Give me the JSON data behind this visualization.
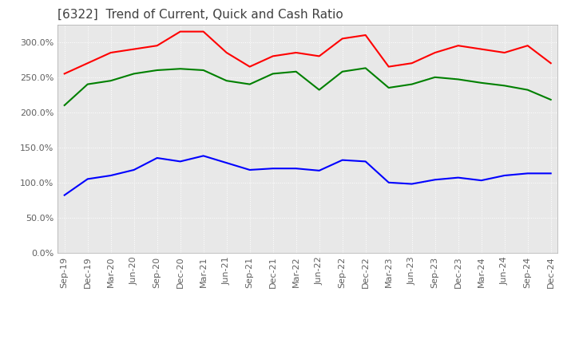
{
  "title": "[6322]  Trend of Current, Quick and Cash Ratio",
  "x_labels": [
    "Sep-19",
    "Dec-19",
    "Mar-20",
    "Jun-20",
    "Sep-20",
    "Dec-20",
    "Mar-21",
    "Jun-21",
    "Sep-21",
    "Dec-21",
    "Mar-22",
    "Jun-22",
    "Sep-22",
    "Dec-22",
    "Mar-23",
    "Jun-23",
    "Sep-23",
    "Dec-23",
    "Mar-24",
    "Jun-24",
    "Sep-24",
    "Dec-24"
  ],
  "current_ratio": [
    255,
    270,
    285,
    290,
    295,
    315,
    315,
    285,
    265,
    280,
    285,
    280,
    305,
    310,
    265,
    270,
    285,
    295,
    290,
    285,
    295,
    270
  ],
  "quick_ratio": [
    210,
    240,
    245,
    255,
    260,
    262,
    260,
    245,
    240,
    255,
    258,
    232,
    258,
    263,
    235,
    240,
    250,
    247,
    242,
    238,
    232,
    218
  ],
  "cash_ratio": [
    82,
    105,
    110,
    118,
    135,
    130,
    138,
    128,
    118,
    120,
    120,
    117,
    132,
    130,
    100,
    98,
    104,
    107,
    103,
    110,
    113,
    113
  ],
  "ylim": [
    0,
    325
  ],
  "yticks": [
    0,
    50,
    100,
    150,
    200,
    250,
    300
  ],
  "current_color": "#FF0000",
  "quick_color": "#008000",
  "cash_color": "#0000FF",
  "background_color": "#FFFFFF",
  "plot_bg_color": "#E8E8E8",
  "grid_color": "#FFFFFF",
  "title_color": "#404040",
  "title_fontsize": 11,
  "tick_color": "#606060",
  "tick_fontsize": 8
}
